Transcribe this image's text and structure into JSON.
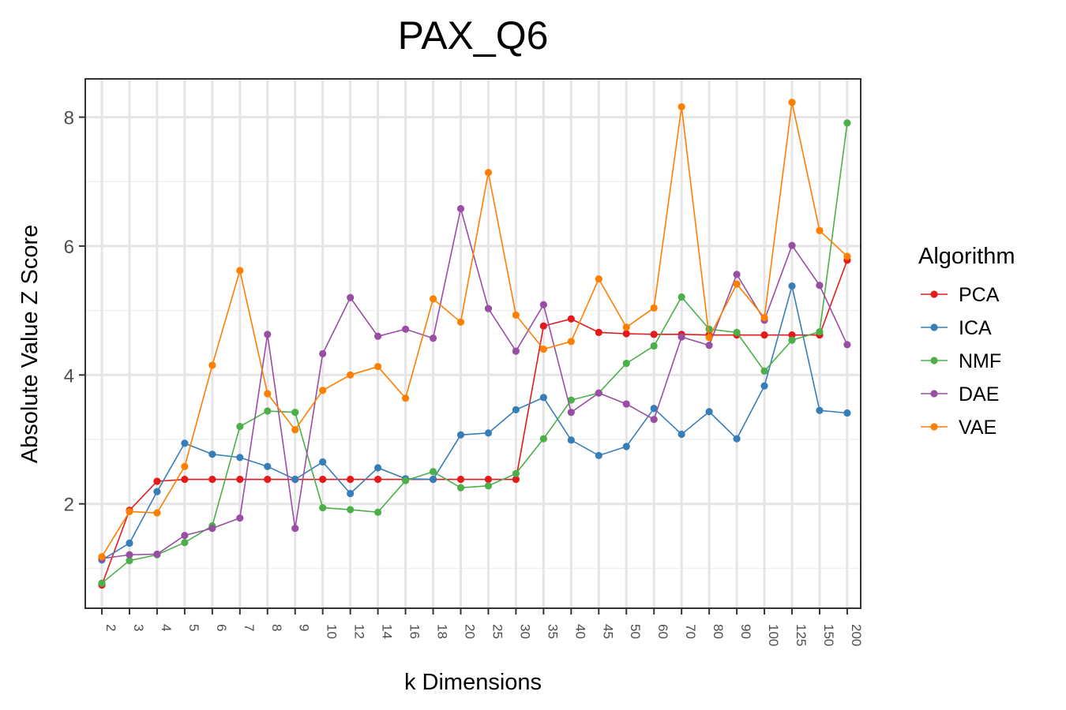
{
  "chart_data": {
    "type": "line",
    "title": "PAX_Q6",
    "xlabel": "k Dimensions",
    "ylabel": "Absolute Value Z Score",
    "categories": [
      "2",
      "3",
      "4",
      "5",
      "6",
      "7",
      "8",
      "9",
      "10",
      "12",
      "14",
      "16",
      "18",
      "20",
      "25",
      "30",
      "35",
      "40",
      "45",
      "50",
      "60",
      "70",
      "80",
      "90",
      "100",
      "125",
      "150",
      "200"
    ],
    "ylim": [
      0.45,
      8.6
    ],
    "yticks": [
      2,
      4,
      6,
      8
    ],
    "grid": true,
    "legend": {
      "title": "Algorithm",
      "placement": "right"
    },
    "series": [
      {
        "name": "PCA",
        "color": "#e41a1c",
        "values": [
          0.74,
          1.9,
          2.35,
          2.38,
          2.38,
          2.38,
          2.38,
          2.38,
          2.38,
          2.38,
          2.38,
          2.38,
          2.38,
          2.38,
          2.38,
          2.38,
          4.76,
          4.87,
          4.66,
          4.64,
          4.63,
          4.63,
          4.62,
          4.62,
          4.62,
          4.62,
          4.62,
          5.78
        ]
      },
      {
        "name": "ICA",
        "color": "#377eb8",
        "values": [
          1.13,
          1.39,
          2.19,
          2.94,
          2.77,
          2.72,
          2.58,
          2.38,
          2.65,
          2.16,
          2.56,
          2.39,
          2.38,
          3.07,
          3.1,
          3.46,
          3.65,
          2.99,
          2.75,
          2.89,
          3.48,
          3.08,
          3.43,
          3.01,
          3.83,
          5.38,
          3.45,
          3.41
        ]
      },
      {
        "name": "NMF",
        "color": "#4daf4a",
        "values": [
          0.77,
          1.12,
          1.21,
          1.4,
          1.66,
          3.2,
          3.44,
          3.42,
          1.94,
          1.91,
          1.87,
          2.36,
          2.5,
          2.25,
          2.28,
          2.47,
          3.01,
          3.61,
          3.72,
          4.18,
          4.45,
          5.21,
          4.71,
          4.66,
          4.06,
          4.54,
          4.67,
          7.91
        ]
      },
      {
        "name": "DAE",
        "color": "#984ea3",
        "values": [
          1.15,
          1.21,
          1.22,
          1.51,
          1.62,
          1.78,
          4.63,
          1.62,
          4.33,
          5.2,
          4.6,
          4.71,
          4.57,
          6.58,
          5.03,
          4.37,
          5.09,
          3.42,
          3.72,
          3.55,
          3.31,
          4.59,
          4.46,
          5.56,
          4.85,
          6.01,
          5.39,
          4.47
        ]
      },
      {
        "name": "VAE",
        "color": "#ff7f00",
        "values": [
          1.18,
          1.88,
          1.86,
          2.58,
          4.15,
          5.62,
          3.71,
          3.15,
          3.76,
          4.0,
          4.13,
          3.64,
          5.18,
          4.82,
          7.14,
          4.93,
          4.4,
          4.52,
          5.49,
          4.74,
          5.04,
          8.16,
          4.58,
          5.41,
          4.89,
          8.23,
          6.24,
          5.84
        ]
      }
    ]
  }
}
